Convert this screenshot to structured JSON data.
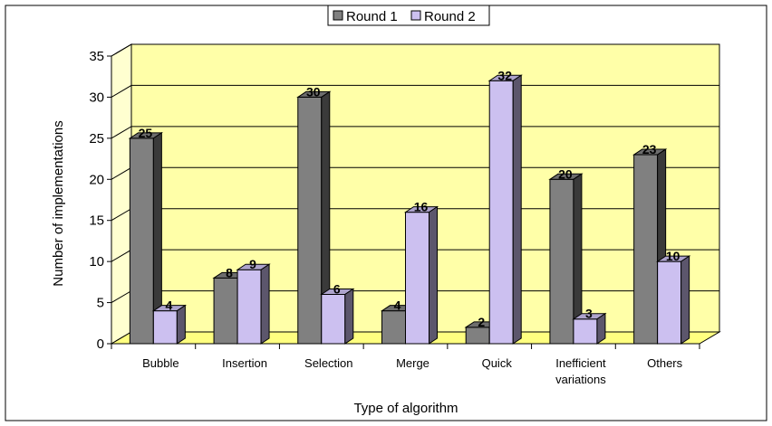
{
  "chart_data": {
    "type": "bar",
    "categories": [
      "Bubble",
      "Insertion",
      "Selection",
      "Merge",
      "Quick",
      "Inefficient variations",
      "Others"
    ],
    "category_lines": [
      [
        "Bubble"
      ],
      [
        "Insertion"
      ],
      [
        "Selection"
      ],
      [
        "Merge"
      ],
      [
        "Quick"
      ],
      [
        "Inefficient",
        "variations"
      ],
      [
        "Others"
      ]
    ],
    "series": [
      {
        "name": "Round 1",
        "values": [
          25,
          8,
          30,
          4,
          2,
          20,
          23
        ],
        "color": "#808080"
      },
      {
        "name": "Round 2",
        "values": [
          4,
          9,
          6,
          16,
          32,
          3,
          10
        ],
        "color": "#CCC0F0"
      }
    ],
    "xlabel": "Type of algorithm",
    "ylabel": "Number of implementations",
    "ylim": [
      0,
      35
    ],
    "yticks": [
      0,
      5,
      10,
      15,
      20,
      25,
      30,
      35
    ],
    "grid": true,
    "legend_position": "top-center",
    "plot_background": "#FFFFA8",
    "data_labels": true
  }
}
